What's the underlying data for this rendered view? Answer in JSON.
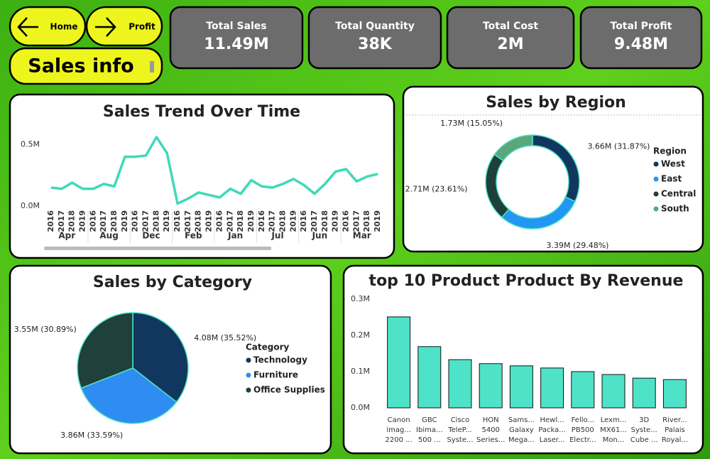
{
  "nav": {
    "home": "Home",
    "profit": "Profit",
    "page_title": "Sales info"
  },
  "kpis": [
    {
      "label": "Total Sales",
      "value": "11.49M"
    },
    {
      "label": "Total Quantity",
      "value": "38K"
    },
    {
      "label": "Total Cost",
      "value": "2M"
    },
    {
      "label": "Total Profit",
      "value": "9.48M"
    }
  ],
  "chart_data": [
    {
      "type": "line",
      "title": "Sales Trend Over Time",
      "color": "#3fd9b8",
      "categories": [
        "2016",
        "2017",
        "2018",
        "2019",
        "2016",
        "2017",
        "2018",
        "2019",
        "2016",
        "2017",
        "2018",
        "2019",
        "2016",
        "2017",
        "2018",
        "2019",
        "2016",
        "2017",
        "2018",
        "2019",
        "2016",
        "2017",
        "2018",
        "2019",
        "2016",
        "2017",
        "2018",
        "2019",
        "2016",
        "2017",
        "2018",
        "2019"
      ],
      "category_groups": [
        "Apr",
        "Aug",
        "Dec",
        "Feb",
        "Jan",
        "Jul",
        "Jun",
        "Mar"
      ],
      "values": [
        0.15,
        0.14,
        0.19,
        0.14,
        0.14,
        0.18,
        0.16,
        0.4,
        0.4,
        0.41,
        0.56,
        0.43,
        0.02,
        0.06,
        0.11,
        0.09,
        0.07,
        0.14,
        0.1,
        0.21,
        0.16,
        0.15,
        0.18,
        0.22,
        0.17,
        0.1,
        0.18,
        0.28,
        0.3,
        0.2,
        0.24,
        0.26
      ],
      "ylim": [
        0,
        0.6
      ],
      "yticks": [
        {
          "value": 0,
          "label": "0.0M"
        },
        {
          "value": 0.5,
          "label": "0.5M"
        }
      ]
    },
    {
      "type": "donut",
      "title": "Sales by Region",
      "legend_title": "Region",
      "categories": [
        "West",
        "East",
        "Central",
        "South"
      ],
      "values": [
        3.66,
        3.39,
        2.71,
        1.73
      ],
      "value_labels": [
        "3.66M (31.87%)",
        "3.39M (29.48%)",
        "2.71M (23.61%)",
        "1.73M (15.05%)"
      ],
      "colors": [
        "#12375e",
        "#2196f3",
        "#1e3f3a",
        "#5aa77c"
      ]
    },
    {
      "type": "pie",
      "title": "Sales by Category",
      "legend_title": "Category",
      "categories": [
        "Technology",
        "Furniture",
        "Office Supplies"
      ],
      "values": [
        4.08,
        3.86,
        3.55
      ],
      "value_labels": [
        "4.08M (35.52%)",
        "3.86M (33.59%)",
        "3.55M (30.89%)"
      ],
      "colors": [
        "#12375e",
        "#2f8cf0",
        "#1f403c"
      ]
    },
    {
      "type": "bar",
      "title": "top 10 Product Product By Revenue",
      "color": "#4ee3c8",
      "categories": [
        [
          "Canon",
          "imag...",
          "2200 ..."
        ],
        [
          "GBC",
          "Ibima...",
          "500 ..."
        ],
        [
          "Cisco",
          "TeleP...",
          "Syste..."
        ],
        [
          "HON",
          "5400",
          "Series..."
        ],
        [
          "Sams...",
          "Galaxy",
          "Mega..."
        ],
        [
          "Hewl...",
          "Packa...",
          "Laser..."
        ],
        [
          "Fello...",
          "PB500",
          "Electr..."
        ],
        [
          "Lexm...",
          "MX61...",
          "Mon..."
        ],
        [
          "3D",
          "Syste...",
          "Cube ..."
        ],
        [
          "River...",
          "Palais",
          "Royal..."
        ]
      ],
      "values": [
        0.251,
        0.169,
        0.133,
        0.122,
        0.116,
        0.11,
        0.1,
        0.092,
        0.082,
        0.078
      ],
      "ylim": [
        0,
        0.3
      ],
      "yticks": [
        {
          "value": 0,
          "label": "0.0M"
        },
        {
          "value": 0.1,
          "label": "0.1M"
        },
        {
          "value": 0.2,
          "label": "0.2M"
        },
        {
          "value": 0.3,
          "label": "0.3M"
        }
      ]
    }
  ]
}
